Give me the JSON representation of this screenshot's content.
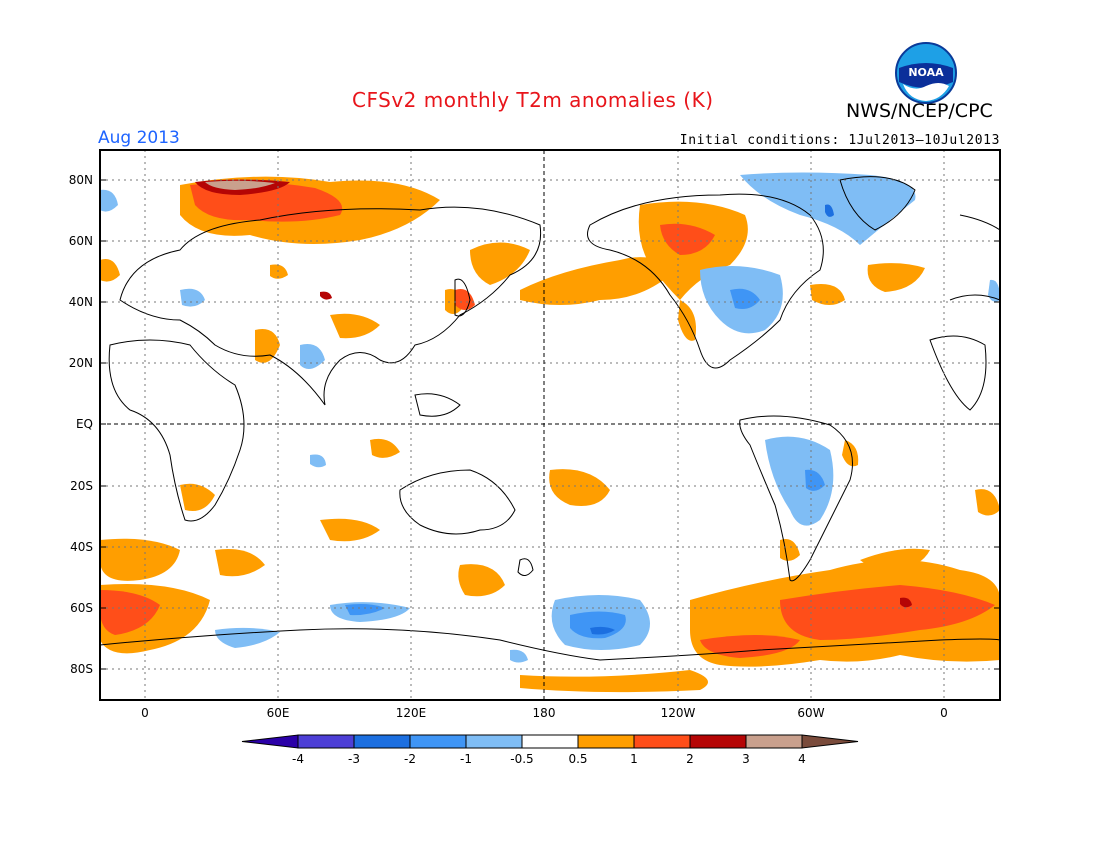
{
  "header": {
    "title": "CFSv2 monthly T2m anomalies (K)",
    "org": "NWS/NCEP/CPC",
    "month": "Aug 2013",
    "init": "Initial conditions: 1Jul2013–10Jul2013",
    "logo_text": "NOAA"
  },
  "map": {
    "lat_labels": [
      "80N",
      "60N",
      "40N",
      "20N",
      "EQ",
      "20S",
      "40S",
      "60S",
      "80S"
    ],
    "lon_labels": [
      "0",
      "60E",
      "120E",
      "180",
      "120W",
      "60W",
      "0"
    ],
    "grid": "dotted",
    "projection": "cylindrical-equidistant"
  },
  "colorbar": {
    "levels": [
      "-4",
      "-3",
      "-2",
      "-1",
      "-0.5",
      "0.5",
      "1",
      "2",
      "3",
      "4"
    ],
    "colors": [
      "#2b00a8",
      "#4d3fd6",
      "#1c6fe0",
      "#3f95f5",
      "#7fbdf5",
      "#ffffff",
      "#ff9e00",
      "#ff4e19",
      "#b50505",
      "#c9a08d",
      "#7a4b3b"
    ]
  }
}
